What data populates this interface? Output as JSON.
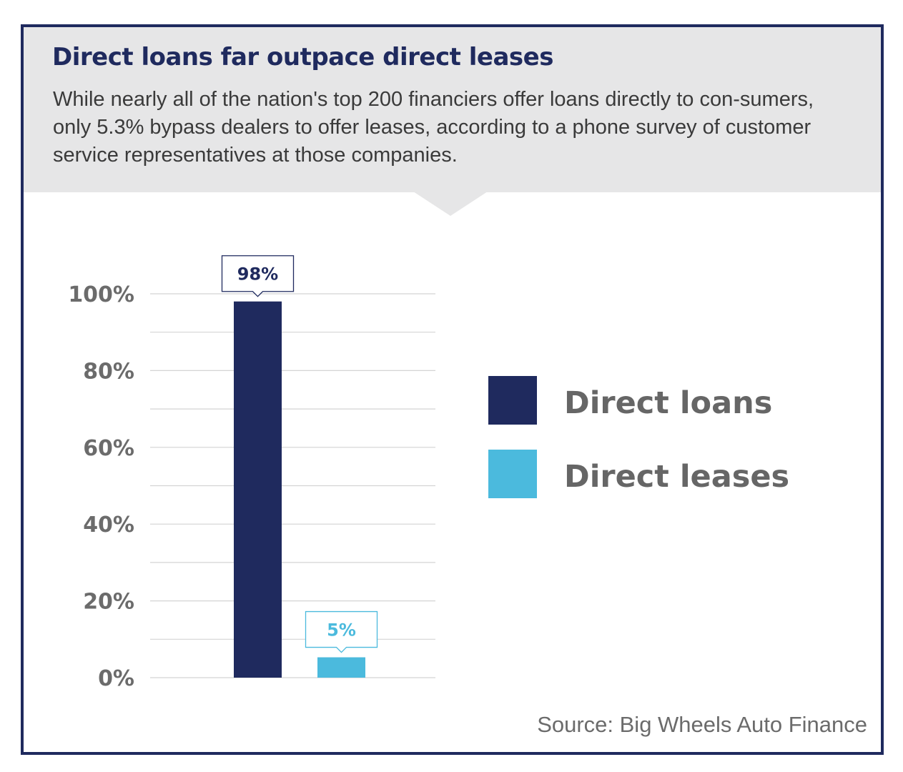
{
  "header": {
    "title": "Direct loans far outpace direct leases",
    "subtitle": "While nearly all of the nation's top 200 financiers offer loans directly to con-sumers, only 5.3% bypass dealers to offer leases, according to a phone survey of customer service representatives at those companies."
  },
  "footer": {
    "source": "Source: Big Wheels Auto Finance"
  },
  "colors": {
    "navy": "#1f2a5e",
    "light_blue": "#4bbadd",
    "header_bg": "#e6e6e7",
    "gridline": "#d4d4d4",
    "axis_text": "#6b6b6b"
  },
  "chart_data": {
    "type": "bar",
    "categories": [
      "Direct loans",
      "Direct leases"
    ],
    "values": [
      98,
      5.3
    ],
    "data_labels": [
      "98%",
      "5%"
    ],
    "series_colors": [
      "#1f2a5e",
      "#4bbadd"
    ],
    "ylim": [
      0,
      100
    ],
    "yticks": [
      0,
      20,
      40,
      60,
      80,
      100
    ],
    "ytick_labels": [
      "0%",
      "20%",
      "40%",
      "60%",
      "80%",
      "100%"
    ],
    "minor_gridlines": [
      10,
      30,
      50,
      70,
      90
    ],
    "grid": true,
    "legend": {
      "placement": "right",
      "entries": [
        "Direct loans",
        "Direct leases"
      ]
    }
  }
}
